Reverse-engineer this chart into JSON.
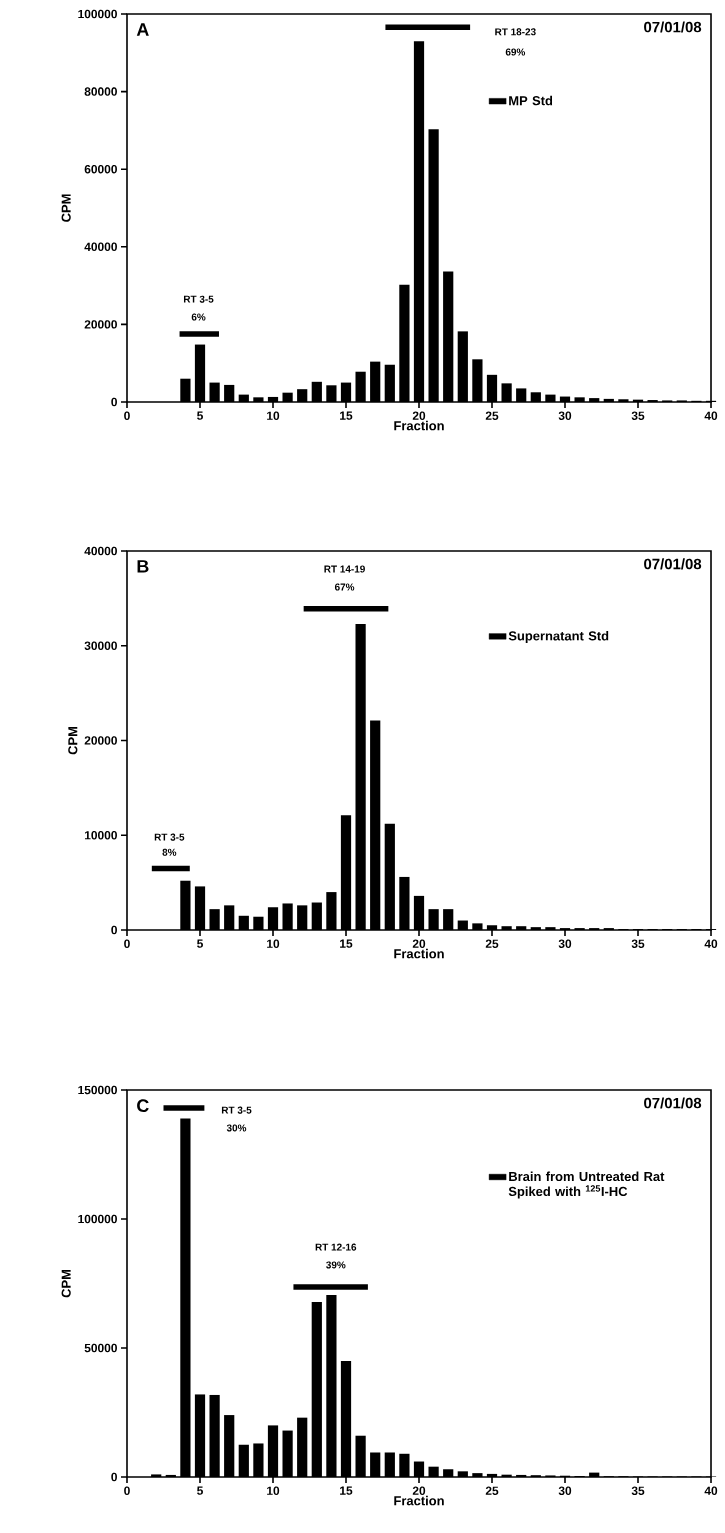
{
  "chart_data": [
    {
      "type": "bar",
      "title": "A",
      "xlabel": "Fraction",
      "ylabel": "CPM",
      "xlim": [
        0,
        40
      ],
      "xticks": [
        0,
        5,
        10,
        15,
        20,
        25,
        30,
        35,
        40
      ],
      "ylim": [
        0,
        100000
      ],
      "yticks": [
        0,
        20000,
        40000,
        60000,
        80000,
        100000
      ],
      "legend": "top right",
      "series": [
        {
          "name": "MP Std",
          "color": "#000000",
          "x": [
            4,
            5,
            6,
            7,
            8,
            9,
            10,
            11,
            12,
            13,
            14,
            15,
            16,
            17,
            18,
            19,
            20,
            21,
            22,
            23,
            24,
            25,
            26,
            27,
            28,
            29,
            30,
            31,
            32,
            33,
            34,
            35,
            36,
            37,
            38,
            39,
            40
          ],
          "values": [
            6000,
            14800,
            5000,
            4400,
            1900,
            1200,
            1300,
            2400,
            3300,
            5200,
            4300,
            5000,
            7800,
            10400,
            9600,
            30200,
            93000,
            70300,
            33600,
            18200,
            11000,
            7000,
            4800,
            3500,
            2500,
            1900,
            1400,
            1200,
            1000,
            800,
            700,
            600,
            500,
            400,
            400,
            300,
            300
          ]
        },
        {
          "type": "line",
          "color": "#000000",
          "x": [
            3.6,
            6.3
          ],
          "values": [
            17500,
            17500
          ]
        },
        {
          "type": "line",
          "color": "#000000",
          "x": [
            17.7,
            23.5
          ],
          "values": [
            96600,
            96600
          ]
        }
      ],
      "annotations": [
        "07/01/08",
        "RT 3-5",
        "6%",
        "RT 18-23",
        "69%"
      ]
    },
    {
      "type": "bar",
      "title": "B",
      "xlabel": "Fraction",
      "ylabel": "CPM",
      "xlim": [
        0,
        40
      ],
      "xticks": [
        0,
        5,
        10,
        15,
        20,
        25,
        30,
        35,
        40
      ],
      "ylim": [
        0,
        40000
      ],
      "yticks": [
        0,
        10000,
        20000,
        30000,
        40000
      ],
      "legend": "top right",
      "series": [
        {
          "name": "Supernatant Std",
          "color": "#000000",
          "x": [
            4,
            5,
            6,
            7,
            8,
            9,
            10,
            11,
            12,
            13,
            14,
            15,
            16,
            17,
            18,
            19,
            20,
            21,
            22,
            23,
            24,
            25,
            26,
            27,
            28,
            29,
            30,
            31,
            32,
            33,
            34,
            35,
            36,
            37,
            38,
            39,
            40
          ],
          "values": [
            5200,
            4600,
            2200,
            2600,
            1500,
            1400,
            2400,
            2800,
            2600,
            2900,
            4000,
            12100,
            32300,
            22100,
            11200,
            5600,
            3600,
            2200,
            2200,
            1000,
            700,
            500,
            400,
            400,
            300,
            300,
            200,
            200,
            200,
            200,
            100,
            100,
            100,
            100,
            100,
            100,
            100
          ]
        },
        {
          "type": "line",
          "color": "#000000",
          "x": [
            1.7,
            4.3
          ],
          "values": [
            6500,
            6500
          ]
        },
        {
          "type": "line",
          "color": "#000000",
          "x": [
            12.1,
            17.9
          ],
          "values": [
            33900,
            33900
          ]
        }
      ],
      "annotations": [
        "07/01/08",
        "RT 3-5",
        "8%",
        "RT 14-19",
        "67%"
      ]
    },
    {
      "type": "bar",
      "title": "C",
      "xlabel": "Fraction",
      "ylabel": "CPM",
      "xlim": [
        0,
        40
      ],
      "xticks": [
        0,
        5,
        10,
        15,
        20,
        25,
        30,
        35,
        40
      ],
      "ylim": [
        0,
        150000
      ],
      "yticks": [
        0,
        50000,
        100000,
        150000
      ],
      "legend": "top right",
      "series": [
        {
          "name": "Brain from Untreated Rat Spiked with $^{125}$I-HC",
          "color": "#000000",
          "x": [
            2,
            3,
            4,
            5,
            6,
            7,
            8,
            9,
            10,
            11,
            12,
            13,
            14,
            15,
            16,
            17,
            18,
            19,
            20,
            21,
            22,
            23,
            24,
            25,
            26,
            27,
            28,
            29,
            30,
            31,
            32,
            33,
            34,
            35,
            36,
            37,
            38,
            39,
            40
          ],
          "values": [
            1000,
            800,
            139000,
            32000,
            31800,
            24000,
            12500,
            13000,
            20000,
            18000,
            23000,
            67800,
            70500,
            45000,
            16000,
            9500,
            9500,
            9000,
            6000,
            4000,
            3000,
            2200,
            1500,
            1200,
            900,
            800,
            700,
            600,
            500,
            400,
            1700,
            300,
            300,
            200,
            200,
            200,
            200,
            200,
            200
          ]
        },
        {
          "type": "line",
          "color": "#000000",
          "x": [
            2.5,
            5.3
          ],
          "values": [
            143000,
            143000
          ]
        },
        {
          "type": "line",
          "color": "#000000",
          "x": [
            11.4,
            16.5
          ],
          "values": [
            73600,
            73600
          ]
        }
      ],
      "annotations": [
        "07/01/08",
        "RT 3-5",
        "30%",
        "RT 12-16",
        "39%"
      ]
    }
  ]
}
